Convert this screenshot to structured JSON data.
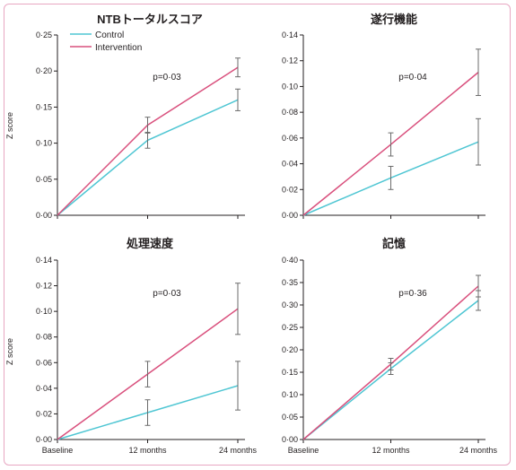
{
  "colors": {
    "control": "#4fc6d3",
    "intervention": "#d9507d",
    "axis": "#231f20",
    "errorbar": "#6b6b6b",
    "frame": "#e8a7c2"
  },
  "legend": {
    "control": "Control",
    "intervention": "Intervention"
  },
  "chart_data": [
    {
      "type": "line",
      "title": "NTBトータルスコア",
      "ylabel": "Z score",
      "x": [
        "Baseline",
        "12 months",
        "24 months"
      ],
      "ylim": [
        0,
        0.25
      ],
      "yticks": [
        "0·00",
        "0·05",
        "0·10",
        "0·15",
        "0·20",
        "0·25"
      ],
      "annotation": "p=0·03",
      "legend_placement": "top-left",
      "series": [
        {
          "name": "Control",
          "values": [
            0,
            0.104,
            0.16
          ],
          "err": [
            0,
            0.011,
            0.015
          ]
        },
        {
          "name": "Intervention",
          "values": [
            0,
            0.125,
            0.205
          ],
          "err": [
            0,
            0.011,
            0.013
          ]
        }
      ]
    },
    {
      "type": "line",
      "title": "遂行機能",
      "ylabel": "",
      "x": [
        "Baseline",
        "12 months",
        "24 months"
      ],
      "ylim": [
        0,
        0.14
      ],
      "yticks": [
        "0·00",
        "0·02",
        "0·04",
        "0·06",
        "0·08",
        "0·10",
        "0·12",
        "0·14"
      ],
      "annotation": "p=0·04",
      "series": [
        {
          "name": "Control",
          "values": [
            0,
            0.029,
            0.057
          ],
          "err": [
            0,
            0.009,
            0.018
          ]
        },
        {
          "name": "Intervention",
          "values": [
            0,
            0.055,
            0.111
          ],
          "err": [
            0,
            0.009,
            0.018
          ]
        }
      ]
    },
    {
      "type": "line",
      "title": "処理速度",
      "ylabel": "Z score",
      "x": [
        "Baseline",
        "12 months",
        "24 months"
      ],
      "ylim": [
        0,
        0.14
      ],
      "yticks": [
        "0·00",
        "0·02",
        "0·04",
        "0·06",
        "0·08",
        "0·10",
        "0·12",
        "0·14"
      ],
      "annotation": "p=0·03",
      "series": [
        {
          "name": "Control",
          "values": [
            0,
            0.021,
            0.042
          ],
          "err": [
            0,
            0.01,
            0.019
          ]
        },
        {
          "name": "Intervention",
          "values": [
            0,
            0.051,
            0.102
          ],
          "err": [
            0,
            0.01,
            0.02
          ]
        }
      ]
    },
    {
      "type": "line",
      "title": "記憶",
      "ylabel": "",
      "x": [
        "Baseline",
        "12 months",
        "24 months"
      ],
      "ylim": [
        0,
        0.4
      ],
      "yticks": [
        "0·00",
        "0·05",
        "0·10",
        "0·15",
        "0·20",
        "0·25",
        "0·30",
        "0·35",
        "0·40"
      ],
      "annotation": "p=0·36",
      "series": [
        {
          "name": "Control",
          "values": [
            0,
            0.158,
            0.31
          ],
          "err": [
            0,
            0.013,
            0.022
          ]
        },
        {
          "name": "Intervention",
          "values": [
            0,
            0.168,
            0.342
          ],
          "err": [
            0,
            0.013,
            0.024
          ]
        }
      ]
    }
  ]
}
